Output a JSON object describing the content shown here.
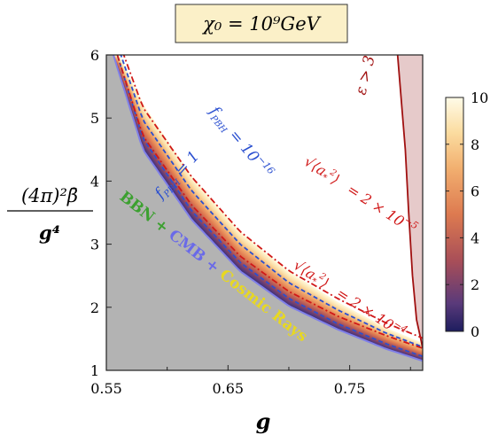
{
  "chart_data": {
    "type": "heatmap",
    "title": "χ₀ = 10⁹GeV",
    "xlabel": "g",
    "ylabel_numerator": "(4π)²β̄",
    "ylabel_denominator": "g⁴",
    "xlim": [
      0.55,
      0.81
    ],
    "ylim": [
      1,
      6
    ],
    "x_ticks": [
      "0.55",
      "0.65",
      "0.75"
    ],
    "y_ticks": [
      "1",
      "2",
      "3",
      "4",
      "5",
      "6"
    ],
    "colorbar": {
      "min": 0,
      "max": 10,
      "ticks": [
        "0",
        "2",
        "4",
        "6",
        "8",
        "10"
      ]
    },
    "colors": {
      "excluded_region": "#b3b3b3",
      "excluded_edge": "#7f7fe8",
      "epsilon_region": "#ddb8b8",
      "epsilon_edge": "#a01010",
      "fpbh_contour": "#2a4fd0",
      "variance_contour": "#d01818",
      "band_low": "#2a2a7a",
      "band_mid": "#e07a50",
      "band_high": "#fff8d8"
    },
    "regions": [
      {
        "name": "BBN + CMB + Cosmic Rays",
        "label_parts": [
          {
            "text": "BBN",
            "color": "#3ca030"
          },
          {
            "text": " + ",
            "color": "#3ca030"
          },
          {
            "text": "CMB",
            "color": "#6a6ae8"
          },
          {
            "text": " + ",
            "color": "#6a6ae8"
          },
          {
            "text": "Cosmic Rays",
            "color": "#e8d820"
          }
        ]
      },
      {
        "name": "ε > 3",
        "label": "ε > 3"
      }
    ],
    "boundaries": {
      "excluded_edge": {
        "x": [
          0.5558,
          0.58,
          0.62,
          0.66,
          0.7,
          0.74,
          0.78,
          0.8101
        ],
        "y": [
          6.0,
          4.5,
          3.39,
          2.57,
          2.02,
          1.65,
          1.34,
          1.15
        ]
      },
      "band_upper_edge": {
        "x": [
          0.5606,
          0.58,
          0.62,
          0.66,
          0.7,
          0.74,
          0.78,
          0.81
        ],
        "y": [
          6.0,
          5.22,
          4.07,
          3.19,
          2.56,
          2.08,
          1.67,
          1.43
        ]
      },
      "epsilon_gt_3": {
        "x": [
          0.7894,
          0.7957,
          0.7985,
          0.8016,
          0.805,
          0.8084,
          0.81
        ],
        "y": [
          6.0,
          4.5,
          3.5,
          2.5,
          1.8,
          1.5,
          1.35
        ]
      }
    },
    "contours": [
      {
        "label": "f_PBH = 1",
        "style": "dashed",
        "x": [
          0.5558,
          0.58,
          0.62,
          0.66,
          0.7,
          0.74,
          0.78,
          0.8101
        ],
        "y": [
          6.2,
          4.68,
          3.53,
          2.71,
          2.14,
          1.74,
          1.42,
          1.22
        ]
      },
      {
        "label": "f_PBH = 10⁻¹⁶",
        "style": "dashed",
        "x": [
          0.5558,
          0.58,
          0.62,
          0.66,
          0.7,
          0.74,
          0.78,
          0.8101
        ],
        "y": [
          6.35,
          4.97,
          3.85,
          3.0,
          2.39,
          1.96,
          1.59,
          1.37
        ]
      },
      {
        "label": "√⟨a*²⟩ = 2 × 10⁻⁴",
        "style": "dashdot",
        "x": [
          0.5558,
          0.58,
          0.62,
          0.66,
          0.7,
          0.74,
          0.78,
          0.8101
        ],
        "y": [
          6.2,
          4.72,
          3.62,
          2.81,
          2.25,
          1.86,
          1.55,
          1.35
        ]
      },
      {
        "label": "√⟨a*²⟩ = 2 × 10⁻⁵",
        "style": "dashdot",
        "x": [
          0.5558,
          0.58,
          0.62,
          0.66,
          0.7,
          0.74,
          0.78,
          0.8101
        ],
        "y": [
          6.45,
          5.17,
          4.07,
          3.2,
          2.58,
          2.14,
          1.75,
          1.51
        ]
      }
    ],
    "annotations": [
      {
        "id": "fpbh1",
        "prefix": "f",
        "sub": "PBH",
        "rest": " = 1"
      },
      {
        "id": "fpbh16",
        "prefix": "f",
        "sub": "PBH",
        "rest": " = 10",
        "sup": "−16"
      },
      {
        "id": "var4",
        "rest": " = 2 × 10",
        "sup": "−4"
      },
      {
        "id": "var5",
        "rest": " = 2 × 10",
        "sup": "−5"
      }
    ]
  }
}
